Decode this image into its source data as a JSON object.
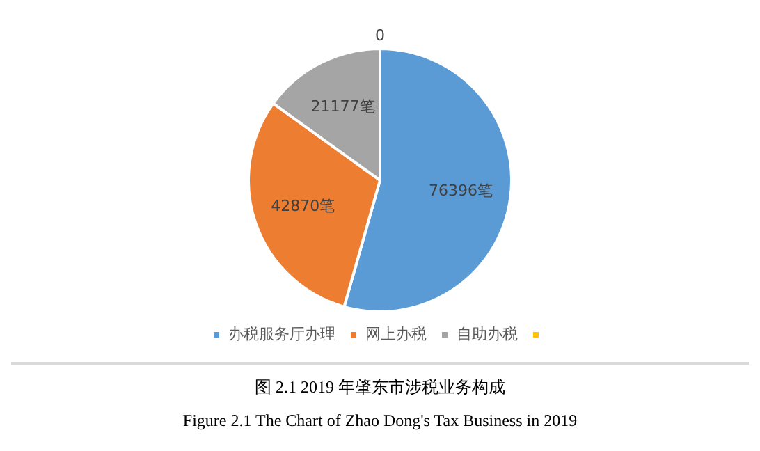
{
  "chart_data": {
    "type": "pie",
    "categories": [
      "办税服务厅办理",
      "网上办税",
      "自助办税",
      null
    ],
    "values": [
      76396,
      42870,
      21177,
      0
    ],
    "value_labels": [
      "76396笔",
      "42870笔",
      "21177笔",
      "0"
    ],
    "colors": [
      "#5b9bd5",
      "#ed7d31",
      "#a5a5a5",
      "#ffc000"
    ],
    "legend": "bottom",
    "annotations": [
      "图 2.1 2019 年肇东市涉税业务构成",
      "Figure 2.1 The Chart of Zhao Dong's Tax Business in 2019"
    ]
  }
}
